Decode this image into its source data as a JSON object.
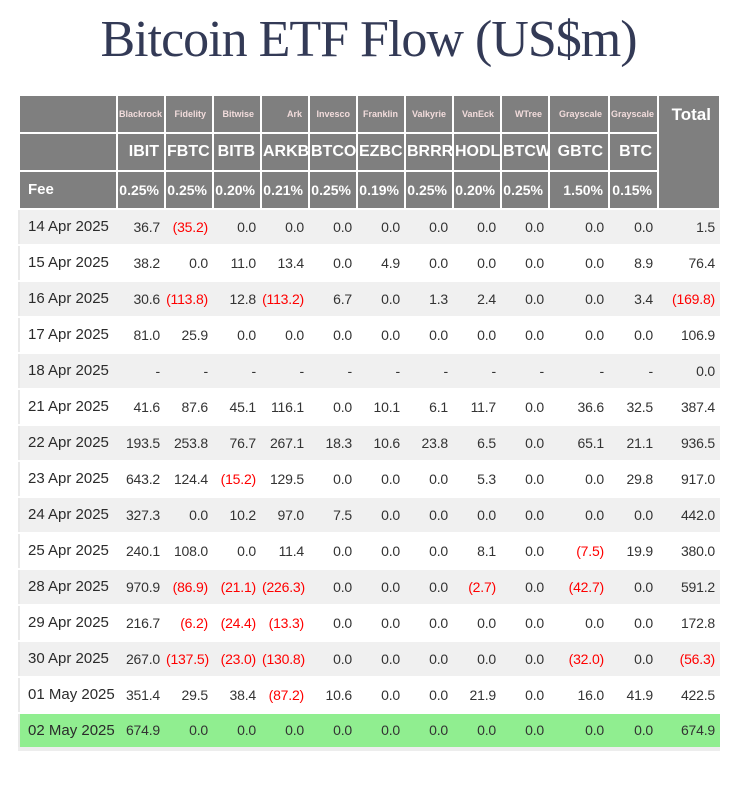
{
  "title": "Bitcoin ETF Flow (US$m)",
  "colors": {
    "title_navy": "#333a56",
    "header_gray": "#7f7f7f",
    "header_text": "#ffffff",
    "header_provider_text": "#f2dcdc",
    "row_stripe": "#f0f0f0",
    "row_white": "#ffffff",
    "highlight_green": "#90ee90",
    "negative_red": "#ff0000",
    "body_text": "#333333"
  },
  "table": {
    "fee_label": "Fee",
    "total_label": "Total",
    "negative_format": "parentheses-red",
    "empty_value": "-"
  },
  "chart_data": {
    "type": "table",
    "title": "Bitcoin ETF Flow (US$m)",
    "units": "US$m",
    "columns": [
      {
        "provider": "Blackrock",
        "ticker": "IBIT",
        "fee": "0.25%"
      },
      {
        "provider": "Fidelity",
        "ticker": "FBTC",
        "fee": "0.25%"
      },
      {
        "provider": "Bitwise",
        "ticker": "BITB",
        "fee": "0.20%"
      },
      {
        "provider": "Ark",
        "ticker": "ARKB",
        "fee": "0.21%"
      },
      {
        "provider": "Invesco",
        "ticker": "BTCO",
        "fee": "0.25%"
      },
      {
        "provider": "Franklin",
        "ticker": "EZBC",
        "fee": "0.19%"
      },
      {
        "provider": "Valkyrie",
        "ticker": "BRRR",
        "fee": "0.25%"
      },
      {
        "provider": "VanEck",
        "ticker": "HODL",
        "fee": "0.20%"
      },
      {
        "provider": "WTree",
        "ticker": "BTCW",
        "fee": "0.25%"
      },
      {
        "provider": "Grayscale",
        "ticker": "GBTC",
        "fee": "1.50%"
      },
      {
        "provider": "Grayscale",
        "ticker": "BTC",
        "fee": "0.15%"
      }
    ],
    "rows": [
      {
        "date": "14 Apr 2025",
        "values": [
          36.7,
          -35.2,
          0.0,
          0.0,
          0.0,
          0.0,
          0.0,
          0.0,
          0.0,
          0.0,
          0.0
        ],
        "total": 1.5,
        "highlighted": false
      },
      {
        "date": "15 Apr 2025",
        "values": [
          38.2,
          0.0,
          11.0,
          13.4,
          0.0,
          4.9,
          0.0,
          0.0,
          0.0,
          0.0,
          8.9
        ],
        "total": 76.4,
        "highlighted": false
      },
      {
        "date": "16 Apr 2025",
        "values": [
          30.6,
          -113.8,
          12.8,
          -113.2,
          6.7,
          0.0,
          1.3,
          2.4,
          0.0,
          0.0,
          3.4
        ],
        "total": -169.8,
        "highlighted": false
      },
      {
        "date": "17 Apr 2025",
        "values": [
          81.0,
          25.9,
          0.0,
          0.0,
          0.0,
          0.0,
          0.0,
          0.0,
          0.0,
          0.0,
          0.0
        ],
        "total": 106.9,
        "highlighted": false
      },
      {
        "date": "18 Apr 2025",
        "values": [
          null,
          null,
          null,
          null,
          null,
          null,
          null,
          null,
          null,
          null,
          null
        ],
        "total": 0.0,
        "highlighted": false
      },
      {
        "date": "21 Apr 2025",
        "values": [
          41.6,
          87.6,
          45.1,
          116.1,
          0.0,
          10.1,
          6.1,
          11.7,
          0.0,
          36.6,
          32.5
        ],
        "total": 387.4,
        "highlighted": false
      },
      {
        "date": "22 Apr 2025",
        "values": [
          193.5,
          253.8,
          76.7,
          267.1,
          18.3,
          10.6,
          23.8,
          6.5,
          0.0,
          65.1,
          21.1
        ],
        "total": 936.5,
        "highlighted": false
      },
      {
        "date": "23 Apr 2025",
        "values": [
          643.2,
          124.4,
          -15.2,
          129.5,
          0.0,
          0.0,
          0.0,
          5.3,
          0.0,
          0.0,
          29.8
        ],
        "total": 917.0,
        "highlighted": false
      },
      {
        "date": "24 Apr 2025",
        "values": [
          327.3,
          0.0,
          10.2,
          97.0,
          7.5,
          0.0,
          0.0,
          0.0,
          0.0,
          0.0,
          0.0
        ],
        "total": 442.0,
        "highlighted": false
      },
      {
        "date": "25 Apr 2025",
        "values": [
          240.1,
          108.0,
          0.0,
          11.4,
          0.0,
          0.0,
          0.0,
          8.1,
          0.0,
          -7.5,
          19.9
        ],
        "total": 380.0,
        "highlighted": false
      },
      {
        "date": "28 Apr 2025",
        "values": [
          970.9,
          -86.9,
          -21.1,
          -226.3,
          0.0,
          0.0,
          0.0,
          -2.7,
          0.0,
          -42.7,
          0.0
        ],
        "total": 591.2,
        "highlighted": false
      },
      {
        "date": "29 Apr 2025",
        "values": [
          216.7,
          -6.2,
          -24.4,
          -13.3,
          0.0,
          0.0,
          0.0,
          0.0,
          0.0,
          0.0,
          0.0
        ],
        "total": 172.8,
        "highlighted": false
      },
      {
        "date": "30 Apr 2025",
        "values": [
          267.0,
          -137.5,
          -23.0,
          -130.8,
          0.0,
          0.0,
          0.0,
          0.0,
          0.0,
          -32.0,
          0.0
        ],
        "total": -56.3,
        "highlighted": false
      },
      {
        "date": "01 May 2025",
        "values": [
          351.4,
          29.5,
          38.4,
          -87.2,
          10.6,
          0.0,
          0.0,
          21.9,
          0.0,
          16.0,
          41.9
        ],
        "total": 422.5,
        "highlighted": false
      },
      {
        "date": "02 May 2025",
        "values": [
          674.9,
          0.0,
          0.0,
          0.0,
          0.0,
          0.0,
          0.0,
          0.0,
          0.0,
          0.0,
          0.0
        ],
        "total": 674.9,
        "highlighted": true
      }
    ]
  }
}
